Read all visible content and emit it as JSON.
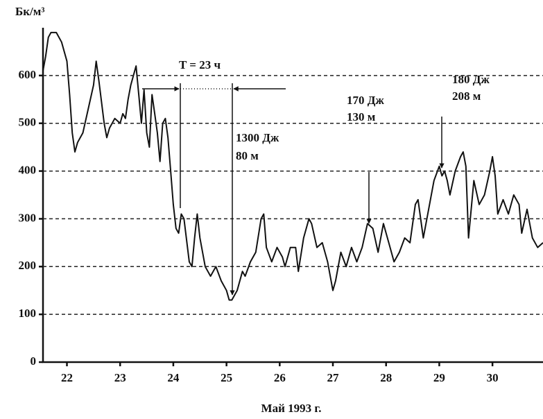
{
  "chart_data": {
    "type": "line",
    "y_label": "Бк/м³",
    "x_label": "Май 1993 г.",
    "xlim": [
      21.55,
      30.95
    ],
    "xticks": [
      22,
      23,
      24,
      25,
      26,
      27,
      28,
      29,
      30
    ],
    "ylim": [
      0,
      700
    ],
    "yticks": [
      0,
      100,
      200,
      300,
      400,
      500,
      600
    ],
    "grid": true,
    "annotations": [
      "T = 23 ч",
      "1300 Дж",
      "80 м",
      "170 Дж",
      "130 м",
      "180 Дж",
      "208 м"
    ],
    "series": [
      {
        "color": "#111111",
        "x": [
          21.55,
          21.6,
          21.65,
          21.7,
          21.8,
          21.9,
          22.0,
          22.05,
          22.1,
          22.15,
          22.2,
          22.3,
          22.4,
          22.5,
          22.55,
          22.6,
          22.7,
          22.75,
          22.8,
          22.9,
          23.0,
          23.05,
          23.1,
          23.15,
          23.2,
          23.25,
          23.3,
          23.35,
          23.4,
          23.45,
          23.5,
          23.55,
          23.6,
          23.65,
          23.7,
          23.75,
          23.8,
          23.85,
          23.9,
          23.95,
          24.0,
          24.05,
          24.1,
          24.15,
          24.2,
          24.3,
          24.35,
          24.4,
          24.45,
          24.5,
          24.6,
          24.7,
          24.8,
          24.9,
          25.0,
          25.05,
          25.1,
          25.2,
          25.3,
          25.35,
          25.45,
          25.55,
          25.65,
          25.7,
          25.75,
          25.85,
          25.95,
          26.05,
          26.1,
          26.2,
          26.3,
          26.35,
          26.45,
          26.55,
          26.6,
          26.7,
          26.8,
          26.9,
          26.95,
          27.0,
          27.05,
          27.15,
          27.25,
          27.35,
          27.45,
          27.55,
          27.65,
          27.75,
          27.85,
          27.95,
          28.05,
          28.15,
          28.25,
          28.35,
          28.45,
          28.55,
          28.6,
          28.7,
          28.8,
          28.9,
          29.0,
          29.05,
          29.1,
          29.15,
          29.2,
          29.3,
          29.4,
          29.45,
          29.5,
          29.55,
          29.65,
          29.75,
          29.85,
          29.95,
          30.0,
          30.05,
          30.1,
          30.2,
          30.3,
          30.4,
          30.5,
          30.55,
          30.65,
          30.75,
          30.85,
          30.95
        ],
        "values": [
          610,
          640,
          680,
          690,
          690,
          670,
          630,
          560,
          480,
          440,
          460,
          480,
          530,
          580,
          630,
          590,
          500,
          470,
          490,
          510,
          500,
          520,
          510,
          550,
          580,
          600,
          620,
          560,
          500,
          570,
          480,
          450,
          560,
          520,
          480,
          420,
          500,
          510,
          470,
          400,
          330,
          280,
          270,
          310,
          300,
          210,
          200,
          260,
          310,
          260,
          200,
          180,
          200,
          170,
          150,
          130,
          130,
          150,
          190,
          180,
          210,
          230,
          300,
          310,
          240,
          210,
          240,
          220,
          200,
          240,
          240,
          190,
          260,
          300,
          290,
          240,
          250,
          210,
          180,
          150,
          170,
          230,
          200,
          240,
          210,
          240,
          290,
          280,
          230,
          290,
          250,
          210,
          230,
          260,
          250,
          330,
          340,
          260,
          320,
          380,
          410,
          390,
          400,
          380,
          350,
          400,
          430,
          440,
          410,
          260,
          380,
          330,
          350,
          400,
          430,
          390,
          310,
          340,
          310,
          350,
          330,
          270,
          320,
          260,
          240,
          250
        ]
      }
    ]
  }
}
